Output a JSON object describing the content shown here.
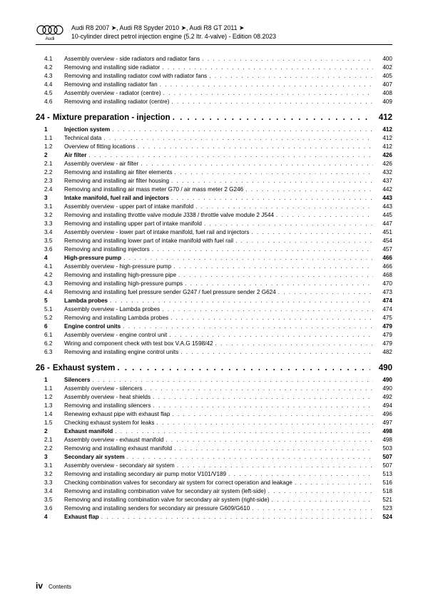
{
  "header": {
    "line1_a": "Audi R8 2007 ",
    "line1_b": ", Audi R8 Spyder 2010 ",
    "line1_c": ", Audi R8 GT 2011 ",
    "arrow": "➤",
    "line2": "10-cylinder direct petrol injection engine (5.2 ltr. 4-valve) - Edition 08.2023"
  },
  "footer": {
    "page": "iv",
    "label": "Contents"
  },
  "cont": [
    {
      "num": "4.1",
      "txt": "Assembly overview - side radiators and radiator fans",
      "pg": "400"
    },
    {
      "num": "4.2",
      "txt": "Removing and installing side radiator",
      "pg": "402"
    },
    {
      "num": "4.3",
      "txt": "Removing and installing radiator cowl with radiator fans",
      "pg": "405"
    },
    {
      "num": "4.4",
      "txt": "Removing and installing radiator fan",
      "pg": "407"
    },
    {
      "num": "4.5",
      "txt": "Assembly overview - radiator (centre)",
      "pg": "408"
    },
    {
      "num": "4.6",
      "txt": "Removing and installing radiator (centre)",
      "pg": "409"
    }
  ],
  "ch24": {
    "num": "24 -",
    "title": "Mixture preparation - injection",
    "pg": "412"
  },
  "s24": [
    {
      "num": "1",
      "txt": "Injection system",
      "pg": "412",
      "b": true
    },
    {
      "num": "1.1",
      "txt": "Technical data",
      "pg": "412"
    },
    {
      "num": "1.2",
      "txt": "Overview of fitting locations",
      "pg": "412"
    },
    {
      "num": "2",
      "txt": "Air filter",
      "pg": "426",
      "b": true
    },
    {
      "num": "2.1",
      "txt": "Assembly overview - air filter",
      "pg": "426"
    },
    {
      "num": "2.2",
      "txt": "Removing and installing air filter elements",
      "pg": "432"
    },
    {
      "num": "2.3",
      "txt": "Removing and installing air filter housing",
      "pg": "437"
    },
    {
      "num": "2.4",
      "txt": "Removing and installing air mass meter G70 / air mass meter 2 G246",
      "pg": "442"
    },
    {
      "num": "3",
      "txt": "Intake manifold, fuel rail and injectors",
      "pg": "443",
      "b": true
    },
    {
      "num": "3.1",
      "txt": "Assembly overview - upper part of intake manifold",
      "pg": "443"
    },
    {
      "num": "3.2",
      "txt": "Removing and installing throttle valve module J338 / throttle valve module 2 J544",
      "pg": "445"
    },
    {
      "num": "3.3",
      "txt": "Removing and installing upper part of intake manifold",
      "pg": "447"
    },
    {
      "num": "3.4",
      "txt": "Assembly overview - lower part of intake manifold, fuel rail and injectors",
      "pg": "451"
    },
    {
      "num": "3.5",
      "txt": "Removing and installing lower part of intake manifold with fuel rail",
      "pg": "454"
    },
    {
      "num": "3.6",
      "txt": "Removing and installing injectors",
      "pg": "457"
    },
    {
      "num": "4",
      "txt": "High-pressure pump",
      "pg": "466",
      "b": true
    },
    {
      "num": "4.1",
      "txt": "Assembly overview - high-pressure pump",
      "pg": "466"
    },
    {
      "num": "4.2",
      "txt": "Removing and installing high-pressure pipe",
      "pg": "468"
    },
    {
      "num": "4.3",
      "txt": "Removing and installing high-pressure pumps",
      "pg": "470"
    },
    {
      "num": "4.4",
      "txt": "Removing and installing fuel pressure sender G247 / fuel pressure sender 2 G624",
      "pg": "473"
    },
    {
      "num": "5",
      "txt": "Lambda probes",
      "pg": "474",
      "b": true
    },
    {
      "num": "5.1",
      "txt": "Assembly overview - Lambda probes",
      "pg": "474"
    },
    {
      "num": "5.2",
      "txt": "Removing and installing Lambda probes",
      "pg": "475"
    },
    {
      "num": "6",
      "txt": "Engine control units",
      "pg": "479",
      "b": true
    },
    {
      "num": "6.1",
      "txt": "Assembly overview - engine control unit",
      "pg": "479"
    },
    {
      "num": "6.2",
      "txt": "Wiring and component check with test box V.A.G 1598/42",
      "pg": "479"
    },
    {
      "num": "6.3",
      "txt": "Removing and installing engine control units",
      "pg": "482"
    }
  ],
  "ch26": {
    "num": "26 -",
    "title": "Exhaust system",
    "pg": "490"
  },
  "s26": [
    {
      "num": "1",
      "txt": "Silencers",
      "pg": "490",
      "b": true
    },
    {
      "num": "1.1",
      "txt": "Assembly overview - silencers",
      "pg": "490"
    },
    {
      "num": "1.2",
      "txt": "Assembly overview - heat shields",
      "pg": "492"
    },
    {
      "num": "1.3",
      "txt": "Removing and installing silencers",
      "pg": "494"
    },
    {
      "num": "1.4",
      "txt": "Renewing exhaust pipe with exhaust flap",
      "pg": "496"
    },
    {
      "num": "1.5",
      "txt": "Checking exhaust system for leaks",
      "pg": "497"
    },
    {
      "num": "2",
      "txt": "Exhaust manifold",
      "pg": "498",
      "b": true
    },
    {
      "num": "2.1",
      "txt": "Assembly overview - exhaust manifold",
      "pg": "498"
    },
    {
      "num": "2.2",
      "txt": "Removing and installing exhaust manifold",
      "pg": "503"
    },
    {
      "num": "3",
      "txt": "Secondary air system",
      "pg": "507",
      "b": true
    },
    {
      "num": "3.1",
      "txt": "Assembly overview - secondary air system",
      "pg": "507"
    },
    {
      "num": "3.2",
      "txt": "Removing and installing secondary air pump motor V101/V189",
      "pg": "513"
    },
    {
      "num": "3.3",
      "txt": "Checking combination valves for secondary air system for correct operation and leakage",
      "pg": "516"
    },
    {
      "num": "3.4",
      "txt": "Removing and installing combination valve for secondary air system (left-side)",
      "pg": "518"
    },
    {
      "num": "3.5",
      "txt": "Removing and installing combination valve for secondary air system (right-side)",
      "pg": "521"
    },
    {
      "num": "3.6",
      "txt": "Removing and installing senders for secondary air pressure G609/G610",
      "pg": "523"
    },
    {
      "num": "4",
      "txt": "Exhaust flap",
      "pg": "524",
      "b": true
    }
  ]
}
